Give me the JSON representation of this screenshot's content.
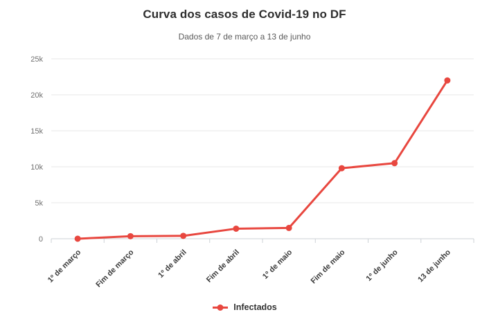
{
  "chart_data": {
    "type": "line",
    "title": "Curva dos casos de Covid-19 no DF",
    "subtitle": "Dados de 7 de março a 13 de junho",
    "categories": [
      "1º de março",
      "Fim de março",
      "1º de abril",
      "Fim de abril",
      "1º de maio",
      "Fim de maio",
      "1º de junho",
      "13 de junho"
    ],
    "series": [
      {
        "name": "Infectados",
        "color": "#e8473f",
        "values": [
          1,
          350,
          400,
          1400,
          1500,
          9800,
          10500,
          22000
        ]
      }
    ],
    "xlabel": "",
    "ylabel": "",
    "ylim": [
      0,
      25000
    ],
    "yticks": [
      {
        "value": 0,
        "label": "0"
      },
      {
        "value": 5000,
        "label": "5k"
      },
      {
        "value": 10000,
        "label": "10k"
      },
      {
        "value": 15000,
        "label": "15k"
      },
      {
        "value": 20000,
        "label": "20k"
      },
      {
        "value": 25000,
        "label": "25k"
      }
    ],
    "grid": "horizontal",
    "legend_position": "bottom"
  },
  "colors": {
    "series": "#e8473f",
    "title_text": "#2d2d2d",
    "subtitle_text": "#595959",
    "y_axis_label": "#6f6f6f",
    "x_category_label": "#3a3a3a",
    "gridline": "#e7e7e7",
    "axis_line": "#ccd1d6"
  }
}
